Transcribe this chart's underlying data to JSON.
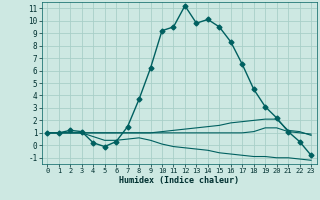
{
  "xlabel": "Humidex (Indice chaleur)",
  "background_color": "#cde8e2",
  "grid_color": "#a8cfc8",
  "line_color": "#006060",
  "xlim": [
    -0.5,
    23.5
  ],
  "ylim": [
    -1.5,
    11.5
  ],
  "xticks": [
    0,
    1,
    2,
    3,
    4,
    5,
    6,
    7,
    8,
    9,
    10,
    11,
    12,
    13,
    14,
    15,
    16,
    17,
    18,
    19,
    20,
    21,
    22,
    23
  ],
  "yticks": [
    -1,
    0,
    1,
    2,
    3,
    4,
    5,
    6,
    7,
    8,
    9,
    10,
    11
  ],
  "series_main": {
    "x": [
      0,
      1,
      2,
      3,
      4,
      5,
      6,
      7,
      8,
      9,
      10,
      11,
      12,
      13,
      14,
      15,
      16,
      17,
      18,
      19,
      20,
      21,
      22,
      23
    ],
    "y": [
      1,
      1,
      1.2,
      1.1,
      0.2,
      -0.1,
      0.3,
      1.5,
      3.7,
      6.2,
      9.2,
      9.5,
      11.2,
      9.8,
      10.1,
      9.5,
      8.3,
      6.5,
      4.5,
      3.1,
      2.2,
      1.1,
      0.3,
      -0.8
    ]
  },
  "series_flat1": {
    "x": [
      0,
      1,
      2,
      3,
      4,
      5,
      6,
      7,
      8,
      9,
      10,
      11,
      12,
      13,
      14,
      15,
      16,
      17,
      18,
      19,
      20,
      21,
      22,
      23
    ],
    "y": [
      1,
      1,
      1,
      1,
      1,
      1,
      1,
      1,
      1,
      1,
      1.1,
      1.2,
      1.3,
      1.4,
      1.5,
      1.6,
      1.8,
      1.9,
      2.0,
      2.1,
      2.1,
      1.2,
      1.1,
      0.8
    ]
  },
  "series_flat2": {
    "x": [
      0,
      1,
      2,
      3,
      4,
      5,
      6,
      7,
      8,
      9,
      10,
      11,
      12,
      13,
      14,
      15,
      16,
      17,
      18,
      19,
      20,
      21,
      22,
      23
    ],
    "y": [
      1,
      1,
      1,
      1,
      1,
      1,
      1,
      1,
      1,
      1,
      1,
      1,
      1,
      1,
      1,
      1,
      1,
      1,
      1.1,
      1.4,
      1.4,
      1.1,
      1.0,
      0.9
    ]
  },
  "series_down": {
    "x": [
      0,
      1,
      2,
      3,
      4,
      5,
      6,
      7,
      8,
      9,
      10,
      11,
      12,
      13,
      14,
      15,
      16,
      17,
      18,
      19,
      20,
      21,
      22,
      23
    ],
    "y": [
      1,
      1,
      1,
      1,
      0.7,
      0.4,
      0.4,
      0.5,
      0.6,
      0.4,
      0.1,
      -0.1,
      -0.2,
      -0.3,
      -0.4,
      -0.6,
      -0.7,
      -0.8,
      -0.9,
      -0.9,
      -1.0,
      -1.0,
      -1.1,
      -1.2
    ]
  }
}
